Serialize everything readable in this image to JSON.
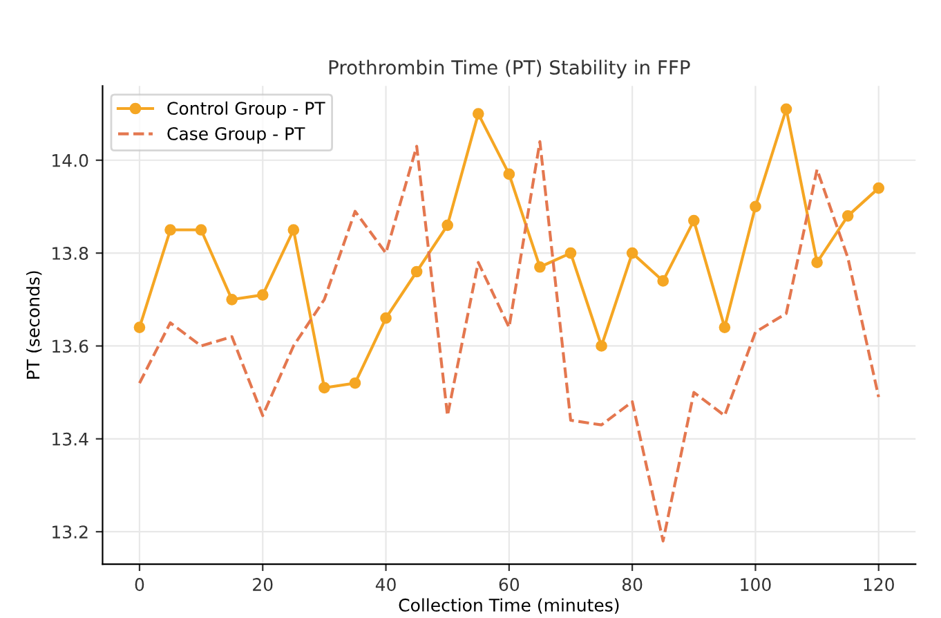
{
  "chart_data": {
    "type": "line",
    "title": "Prothrombin Time (PT) Stability in FFP",
    "xlabel": "Collection Time (minutes)",
    "ylabel": "PT (seconds)",
    "x": [
      0,
      5,
      10,
      15,
      20,
      25,
      30,
      35,
      40,
      45,
      50,
      55,
      60,
      65,
      70,
      75,
      80,
      85,
      90,
      95,
      100,
      105,
      110,
      115,
      120
    ],
    "series": [
      {
        "name": "Control Group - PT",
        "color": "#f5a623",
        "marker": "circle",
        "line_style": "solid",
        "values": [
          13.64,
          13.85,
          13.85,
          13.7,
          13.71,
          13.85,
          13.51,
          13.52,
          13.66,
          13.76,
          13.86,
          14.1,
          13.97,
          13.77,
          13.8,
          13.6,
          13.8,
          13.74,
          13.87,
          13.64,
          13.9,
          14.11,
          13.78,
          13.88,
          13.94
        ]
      },
      {
        "name": "Case Group - PT",
        "color": "#e4774f",
        "marker": "none",
        "line_style": "dashed",
        "values": [
          13.52,
          13.65,
          13.6,
          13.62,
          13.45,
          13.6,
          13.7,
          13.89,
          13.8,
          14.03,
          13.45,
          13.78,
          13.64,
          14.04,
          13.44,
          13.43,
          13.48,
          13.18,
          13.5,
          13.45,
          13.63,
          13.67,
          13.98,
          13.79,
          13.49
        ]
      }
    ],
    "xlim": [
      -6,
      126
    ],
    "ylim": [
      13.13,
      14.16
    ],
    "xticks": [
      0,
      20,
      40,
      60,
      80,
      100,
      120
    ],
    "yticks": [
      {
        "value": 13.2,
        "label": "13.2"
      },
      {
        "value": 13.4,
        "label": "13.4"
      },
      {
        "value": 13.6,
        "label": "13.6"
      },
      {
        "value": 13.8,
        "label": "13.8"
      },
      {
        "value": 14.0,
        "label": "14.0"
      }
    ],
    "grid": true,
    "legend": "top left"
  }
}
